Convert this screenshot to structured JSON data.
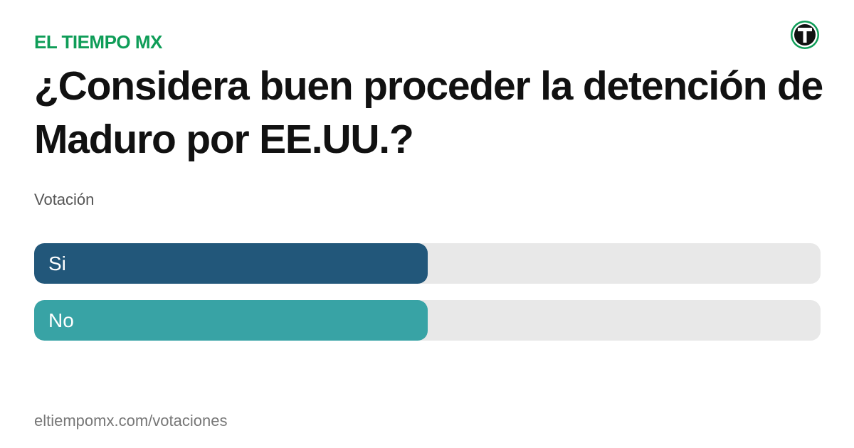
{
  "brand": {
    "name": "EL TIEMPO MX",
    "color": "#0f9d58",
    "logo_icon": "el-tiempo-t-logo-icon"
  },
  "poll": {
    "question": "¿Considera buen proceder la detención de Maduro por EE.UU.?",
    "subtitle": "Votación",
    "options": [
      {
        "label": "Si",
        "fraction": 0.5,
        "color": "#22577a"
      },
      {
        "label": "No",
        "fraction": 0.5,
        "color": "#38a3a5"
      }
    ],
    "track_color": "#e8e8e8"
  },
  "footer": {
    "url": "eltiempomx.com/votaciones"
  }
}
